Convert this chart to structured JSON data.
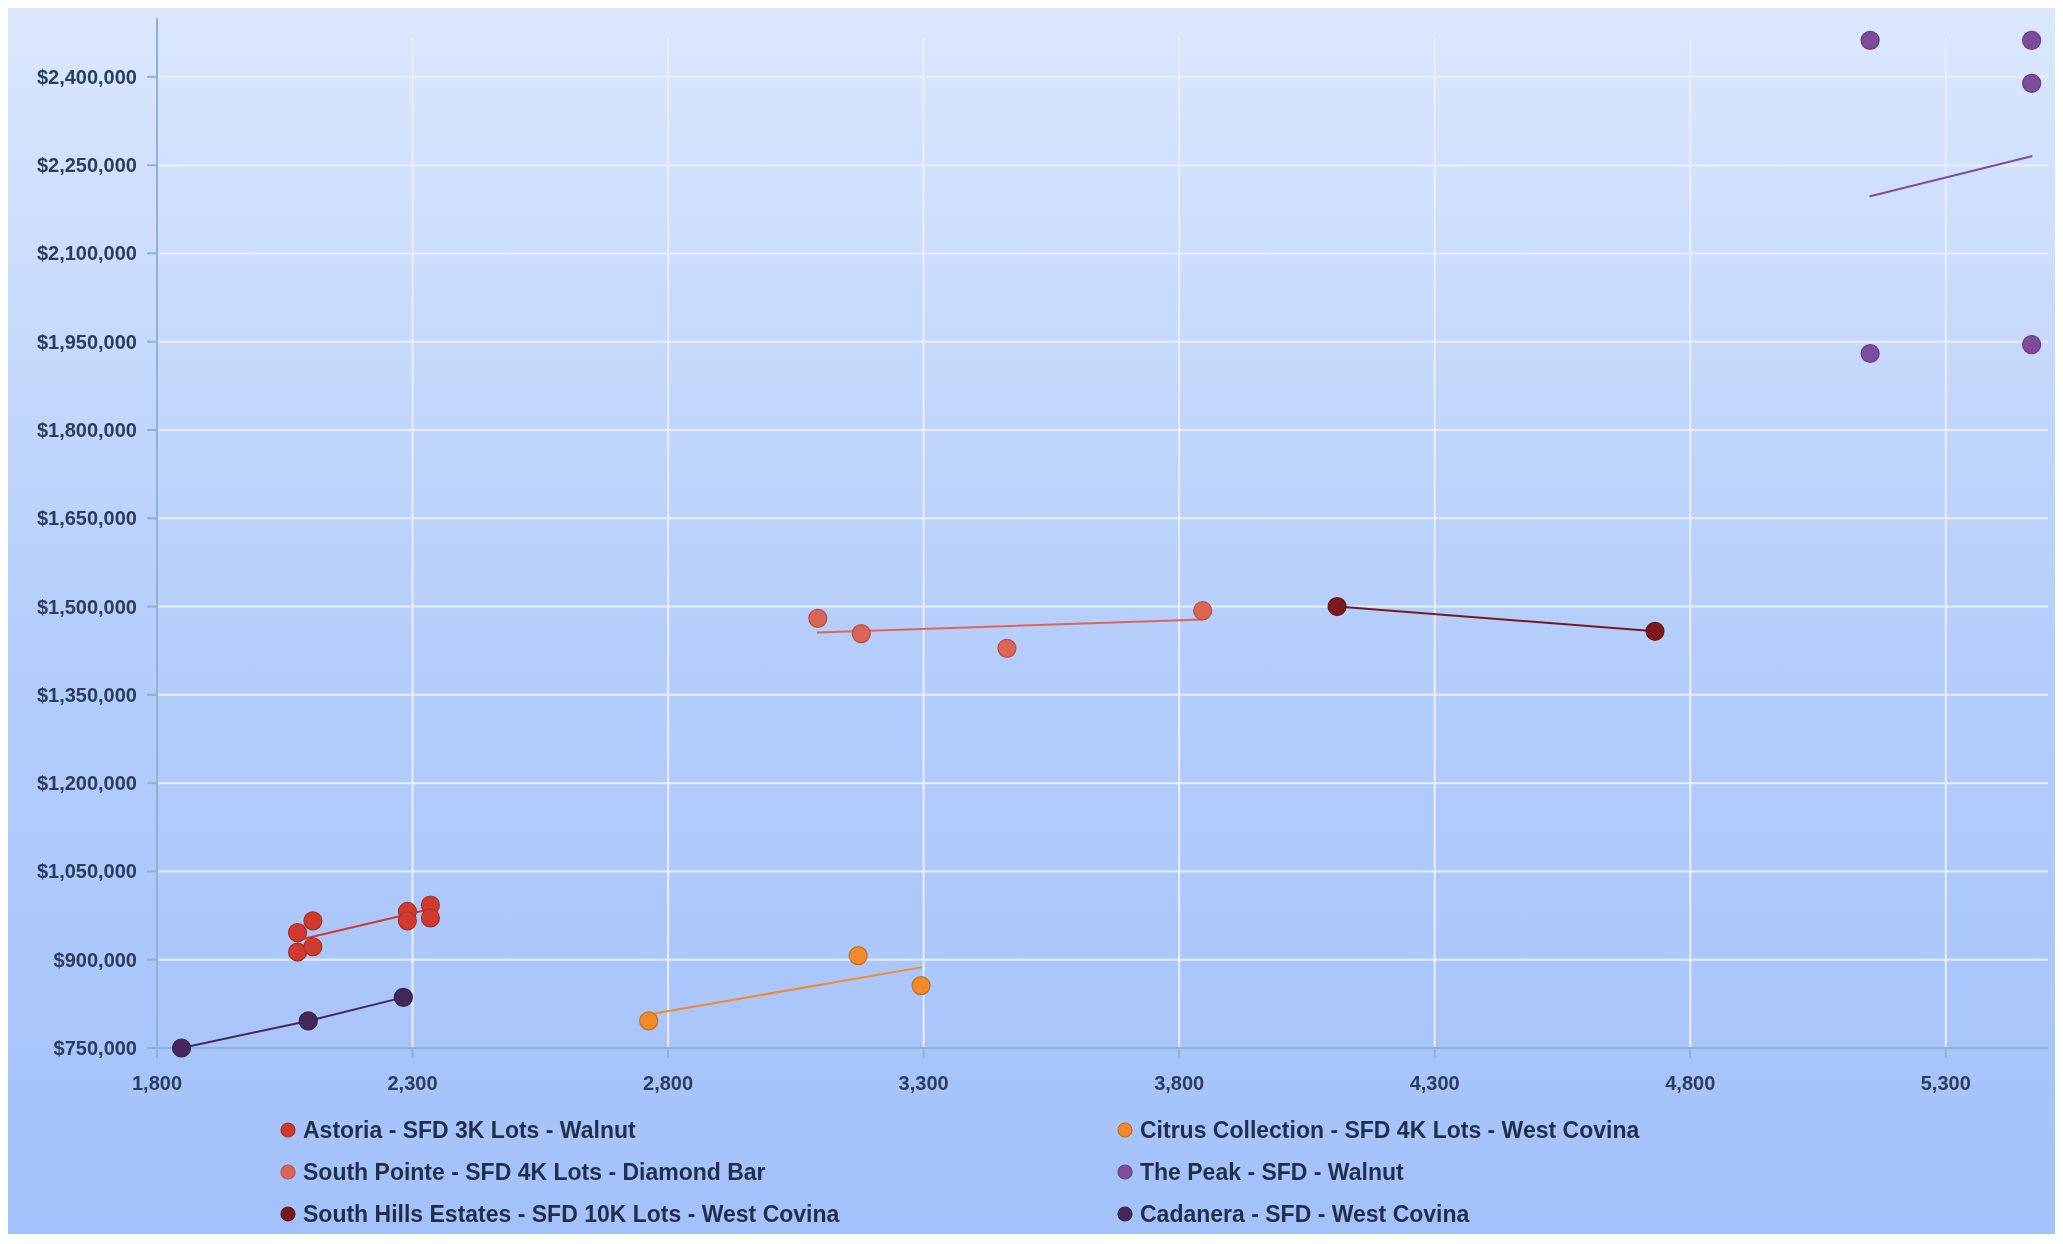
{
  "chart_data": {
    "type": "scatter",
    "marker": "circle",
    "grid": true,
    "legend": "bottom",
    "xlim": [
      1800,
      5500
    ],
    "xticks": [
      {
        "value": 1800,
        "label": "1,800"
      },
      {
        "value": 2300,
        "label": "2,300"
      },
      {
        "value": 2800,
        "label": "2,800"
      },
      {
        "value": 3300,
        "label": "3,300"
      },
      {
        "value": 3800,
        "label": "3,800"
      },
      {
        "value": 4300,
        "label": "4,300"
      },
      {
        "value": 4800,
        "label": "4,800"
      },
      {
        "value": 5300,
        "label": "5,300"
      }
    ],
    "ylim": [
      750000,
      2500000
    ],
    "yticks": [
      {
        "value": 750000,
        "label": "$750,000"
      },
      {
        "value": 900000,
        "label": "$900,000"
      },
      {
        "value": 1050000,
        "label": "$1,050,000"
      },
      {
        "value": 1200000,
        "label": "$1,200,000"
      },
      {
        "value": 1350000,
        "label": "$1,350,000"
      },
      {
        "value": 1500000,
        "label": "$1,500,000"
      },
      {
        "value": 1650000,
        "label": "$1,650,000"
      },
      {
        "value": 1800000,
        "label": "$1,800,000"
      },
      {
        "value": 1950000,
        "label": "$1,950,000"
      },
      {
        "value": 2100000,
        "label": "$2,100,000"
      },
      {
        "value": 2250000,
        "label": "$2,250,000"
      },
      {
        "value": 2400000,
        "label": "$2,400,000"
      }
    ],
    "series": [
      {
        "name": "Astoria - SFD 3K Lots - Walnut",
        "color": "#d13a2f",
        "x": [
          2075,
          2105,
          2075,
          2105,
          2290,
          2290,
          2335,
          2335
        ],
        "values": [
          946000,
          966000,
          913000,
          922000,
          982000,
          966000,
          993000,
          971000
        ]
      },
      {
        "type": "line",
        "marker": "none",
        "color": "#d13a2f",
        "x": [
          2075,
          2335
        ],
        "values": [
          933000,
          986000
        ]
      },
      {
        "name": "South Pointe - SFD 4K Lots - Diamond Bar",
        "color": "#dd6555",
        "x": [
          3093,
          3178,
          3463,
          3846
        ],
        "values": [
          1480000,
          1454000,
          1429000,
          1493000
        ]
      },
      {
        "type": "line",
        "marker": "none",
        "color": "#dd6555",
        "x": [
          3093,
          3846
        ],
        "values": [
          1456000,
          1478000
        ]
      },
      {
        "name": "South Hills Estates - SFD 10K Lots - West Covina",
        "color": "#7a1a1a",
        "x": [
          4109,
          4731
        ],
        "values": [
          1500000,
          1458000
        ]
      },
      {
        "type": "line",
        "marker": "none",
        "color": "#7a1a1a",
        "x": [
          4109,
          4731
        ],
        "values": [
          1500000,
          1458000
        ]
      },
      {
        "name": "Citrus Collection - SFD 4K Lots - West Covina",
        "color": "#f28a2a",
        "x": [
          2762,
          3172,
          3295
        ],
        "values": [
          796000,
          907000,
          856000
        ]
      },
      {
        "type": "line",
        "marker": "none",
        "color": "#f28a2a",
        "x": [
          2762,
          3295
        ],
        "values": [
          807000,
          887000
        ]
      },
      {
        "name": "The Peak - SFD - Walnut",
        "color": "#7e4d9a",
        "x": [
          5152,
          5468,
          5468,
          5152,
          5468
        ],
        "values": [
          2462000,
          2462000,
          2389000,
          1930000,
          1945000
        ]
      },
      {
        "type": "line",
        "marker": "none",
        "color": "#7e4d9a",
        "x": [
          5152,
          5468
        ],
        "values": [
          2197000,
          2265000
        ]
      },
      {
        "name": "Cadanera - SFD - West Covina",
        "color": "#45285a",
        "x": [
          1848,
          2096,
          2282
        ],
        "values": [
          750000,
          796000,
          836000
        ]
      },
      {
        "type": "line",
        "marker": "none",
        "color": "#45285a",
        "x": [
          1848,
          2096,
          2282
        ],
        "values": [
          750000,
          796000,
          836000
        ]
      }
    ]
  }
}
